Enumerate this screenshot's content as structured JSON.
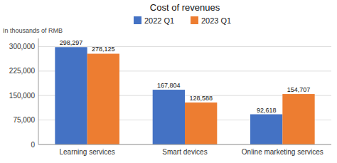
{
  "chart_data": {
    "type": "bar",
    "title": "Cost of revenues",
    "ylabel": "In thousands of RMB",
    "categories": [
      "Learning services",
      "Smart devices",
      "Online marketing services"
    ],
    "series": [
      {
        "name": "2022 Q1",
        "color": "#4472C4",
        "values": [
          298297,
          167804,
          92618
        ],
        "value_labels": [
          "298,297",
          "167,804",
          "92,618"
        ]
      },
      {
        "name": "2023 Q1",
        "color": "#ED7D31",
        "values": [
          278125,
          128588,
          154707
        ],
        "value_labels": [
          "278,125",
          "128,588",
          "154,707"
        ]
      }
    ],
    "ylim": [
      0,
      325000
    ],
    "yticks": [
      0,
      {
        "value": 75000,
        "label": "75,000"
      },
      {
        "value": 150000,
        "label": "150,000"
      },
      {
        "value": 225000,
        "label": "225,000"
      },
      {
        "value": 300000,
        "label": "300,000"
      }
    ],
    "grid": true,
    "legend": "top",
    "data_labels": true
  }
}
